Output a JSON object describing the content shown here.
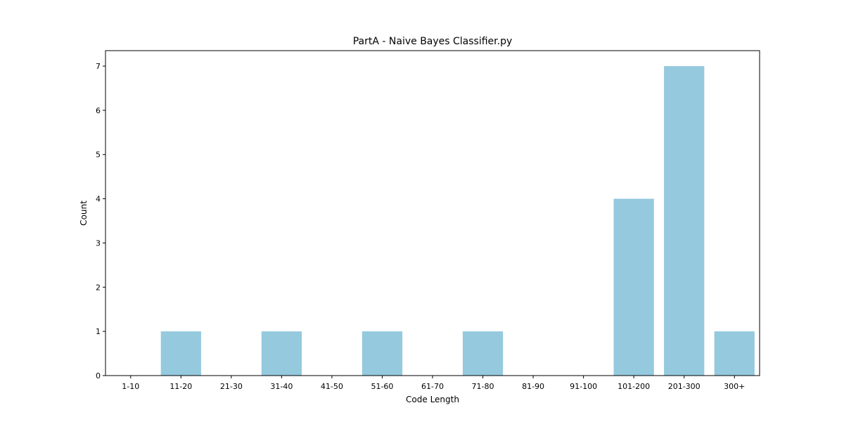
{
  "chart_data": {
    "type": "bar",
    "title": "PartA - Naive Bayes Classifier.py",
    "xlabel": "Code Length",
    "ylabel": "Count",
    "categories": [
      "1-10",
      "11-20",
      "21-30",
      "31-40",
      "41-50",
      "51-60",
      "61-70",
      "71-80",
      "81-90",
      "91-100",
      "101-200",
      "201-300",
      "300+"
    ],
    "values": [
      0,
      1,
      0,
      1,
      0,
      1,
      0,
      1,
      0,
      0,
      4,
      7,
      1
    ],
    "ylim": [
      0,
      7.35
    ],
    "yticks": [
      0,
      1,
      2,
      3,
      4,
      5,
      6,
      7
    ],
    "grid": false,
    "bar_color": "#95c9de"
  }
}
